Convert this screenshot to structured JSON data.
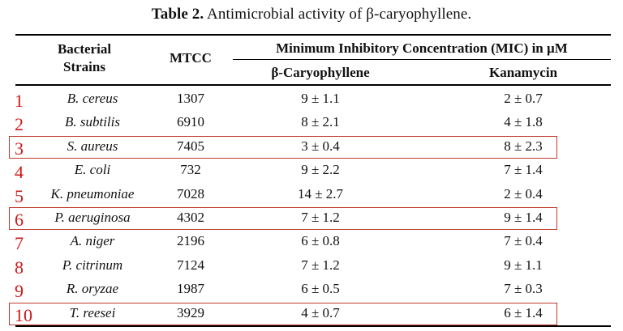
{
  "caption": {
    "label": "Table 2.",
    "text": "Antimicrobial activity of β-caryophyllene."
  },
  "header": {
    "col1_line1": "Bacterial",
    "col1_line2": "Strains",
    "col2": "MTCC",
    "group": "Minimum Inhibitory Concentration (MIC) in µM",
    "col3": "β-Caryophyllene",
    "col4": "Kanamycin"
  },
  "rows": [
    {
      "num": "1",
      "strain": "B. cereus",
      "mtcc": "1307",
      "beta": "9 ± 1.1",
      "kana": "2 ± 0.7",
      "highlight": false
    },
    {
      "num": "2",
      "strain": "B. subtilis",
      "mtcc": "6910",
      "beta": "8 ± 2.1",
      "kana": "4 ± 1.8",
      "highlight": false
    },
    {
      "num": "3",
      "strain": "S. aureus",
      "mtcc": "7405",
      "beta": "3 ± 0.4",
      "kana": "8 ± 2.3",
      "highlight": true
    },
    {
      "num": "4",
      "strain": "E. coli",
      "mtcc": "732",
      "beta": "9 ± 2.2",
      "kana": "7 ± 1.4",
      "highlight": false
    },
    {
      "num": "5",
      "strain": "K. pneumoniae",
      "mtcc": "7028",
      "beta": "14 ± 2.7",
      "kana": "2 ± 0.4",
      "highlight": false
    },
    {
      "num": "6",
      "strain": "P. aeruginosa",
      "mtcc": "4302",
      "beta": "7 ± 1.2",
      "kana": "9 ± 1.4",
      "highlight": true
    },
    {
      "num": "7",
      "strain": "A. niger",
      "mtcc": "2196",
      "beta": "6 ± 0.8",
      "kana": "7 ± 0.4",
      "highlight": false
    },
    {
      "num": "8",
      "strain": "P. citrinum",
      "mtcc": "7124",
      "beta": "7 ± 1.2",
      "kana": "9 ± 1.1",
      "highlight": false
    },
    {
      "num": "9",
      "strain": "R. oryzae",
      "mtcc": "1987",
      "beta": "6 ± 0.5",
      "kana": "7 ± 0.3",
      "highlight": false
    },
    {
      "num": "10",
      "strain": "T. reesei",
      "mtcc": "3929",
      "beta": "4 ± 0.7",
      "kana": "6 ± 1.4",
      "highlight": true
    }
  ],
  "colors": {
    "row_number": "#cc1a1a",
    "highlight_box": "#c0392b"
  }
}
